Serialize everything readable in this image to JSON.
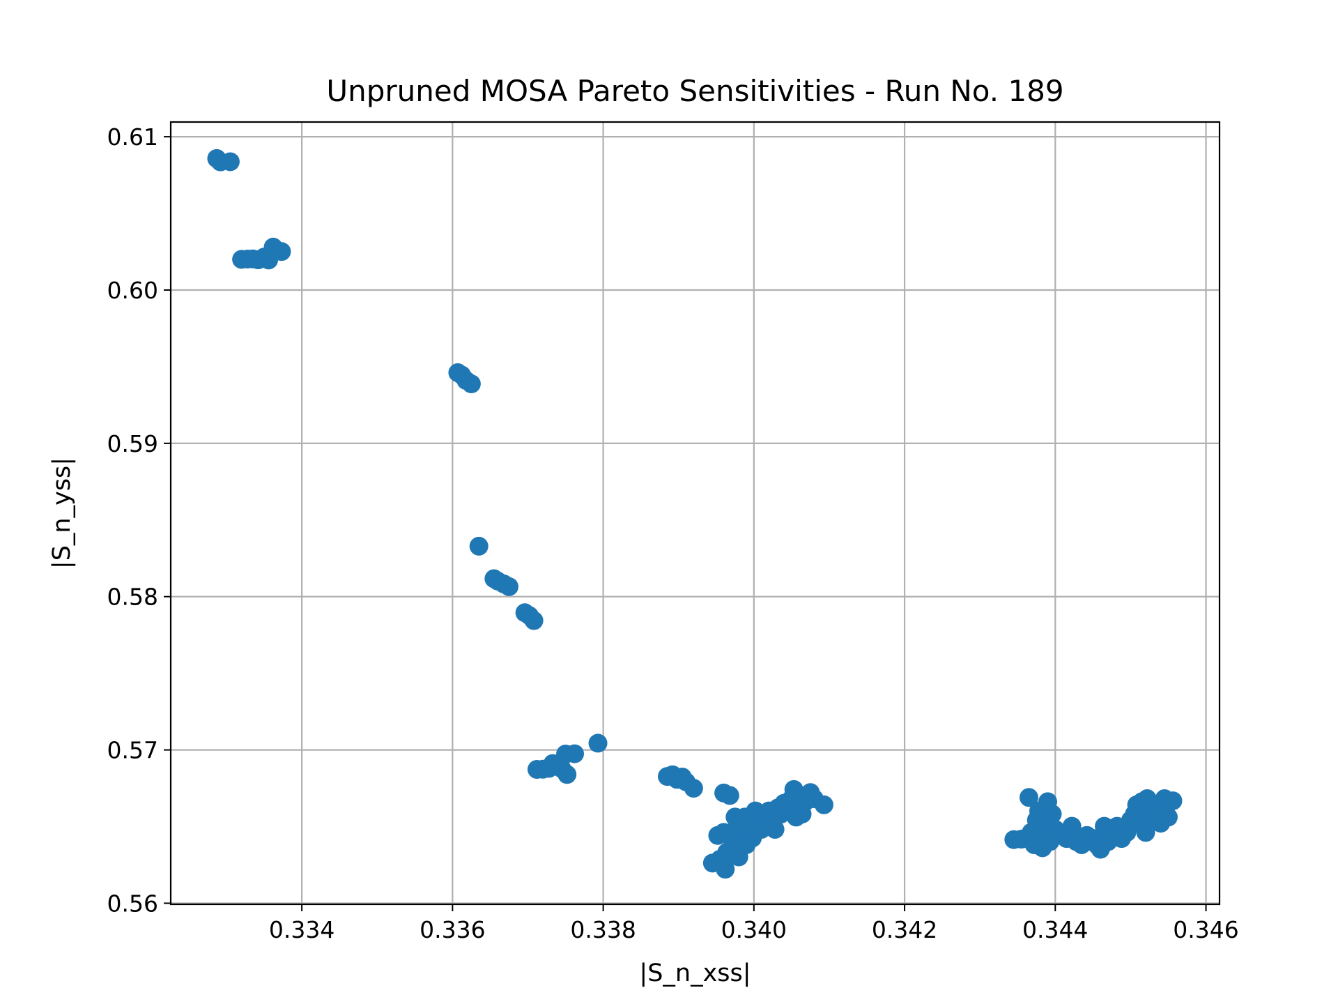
{
  "chart_data": {
    "type": "scatter",
    "title": "Unpruned MOSA Pareto Sensitivities - Run No. 189",
    "xlabel": "|S_n_xss|",
    "ylabel": "|S_n_yss|",
    "xlim": [
      0.33226,
      0.34618
    ],
    "ylim": [
      0.55993,
      0.61096
    ],
    "xticks": [
      0.334,
      0.336,
      0.338,
      0.34,
      0.342,
      0.344,
      0.346
    ],
    "xtick_labels": [
      "0.334",
      "0.336",
      "0.338",
      "0.340",
      "0.342",
      "0.344",
      "0.346"
    ],
    "yticks": [
      0.56,
      0.57,
      0.58,
      0.59,
      0.6,
      0.61
    ],
    "ytick_labels": [
      "0.56",
      "0.57",
      "0.58",
      "0.59",
      "0.60",
      "0.61"
    ],
    "grid": true,
    "marker_color": "#1f77b4",
    "points": [
      [
        0.33287,
        0.60858
      ],
      [
        0.33292,
        0.60836
      ],
      [
        0.33305,
        0.60837
      ],
      [
        0.3332,
        0.602
      ],
      [
        0.33328,
        0.60202
      ],
      [
        0.33335,
        0.60203
      ],
      [
        0.33342,
        0.60197
      ],
      [
        0.3335,
        0.60215
      ],
      [
        0.33356,
        0.60196
      ],
      [
        0.33362,
        0.6028
      ],
      [
        0.33373,
        0.60251
      ],
      [
        0.33607,
        0.59461
      ],
      [
        0.33612,
        0.59446
      ],
      [
        0.33618,
        0.5941
      ],
      [
        0.33625,
        0.59388
      ],
      [
        0.33635,
        0.58329
      ],
      [
        0.33655,
        0.58117
      ],
      [
        0.3366,
        0.58102
      ],
      [
        0.33668,
        0.58083
      ],
      [
        0.33675,
        0.58065
      ],
      [
        0.33696,
        0.57895
      ],
      [
        0.33702,
        0.57876
      ],
      [
        0.33708,
        0.57844
      ],
      [
        0.33712,
        0.56873
      ],
      [
        0.3372,
        0.56874
      ],
      [
        0.33728,
        0.5688
      ],
      [
        0.33733,
        0.56911
      ],
      [
        0.33745,
        0.56878
      ],
      [
        0.3375,
        0.56973
      ],
      [
        0.33752,
        0.5684
      ],
      [
        0.33762,
        0.56975
      ],
      [
        0.33793,
        0.57044
      ],
      [
        0.33885,
        0.56827
      ],
      [
        0.33892,
        0.56838
      ],
      [
        0.33898,
        0.56808
      ],
      [
        0.33905,
        0.56823
      ],
      [
        0.3391,
        0.56792
      ],
      [
        0.3392,
        0.5675
      ],
      [
        0.33945,
        0.56262
      ],
      [
        0.33955,
        0.56287
      ],
      [
        0.33962,
        0.56222
      ],
      [
        0.33952,
        0.56442
      ],
      [
        0.3396,
        0.56462
      ],
      [
        0.3396,
        0.56719
      ],
      [
        0.33968,
        0.56703
      ],
      [
        0.33964,
        0.56332
      ],
      [
        0.33972,
        0.56402
      ],
      [
        0.33975,
        0.56562
      ],
      [
        0.33978,
        0.56502
      ],
      [
        0.3398,
        0.56302
      ],
      [
        0.33985,
        0.56462
      ],
      [
        0.33988,
        0.56562
      ],
      [
        0.3399,
        0.56382
      ],
      [
        0.33995,
        0.56502
      ],
      [
        0.33998,
        0.56425
      ],
      [
        0.34002,
        0.56602
      ],
      [
        0.34005,
        0.56522
      ],
      [
        0.3401,
        0.56482
      ],
      [
        0.34015,
        0.56562
      ],
      [
        0.3402,
        0.56602
      ],
      [
        0.34025,
        0.56522
      ],
      [
        0.34028,
        0.56482
      ],
      [
        0.34032,
        0.56622
      ],
      [
        0.34036,
        0.56582
      ],
      [
        0.3404,
        0.56652
      ],
      [
        0.34045,
        0.56602
      ],
      [
        0.3405,
        0.56682
      ],
      [
        0.34053,
        0.56742
      ],
      [
        0.34056,
        0.56562
      ],
      [
        0.3406,
        0.56622
      ],
      [
        0.34064,
        0.56582
      ],
      [
        0.34068,
        0.56662
      ],
      [
        0.34075,
        0.56722
      ],
      [
        0.3408,
        0.56682
      ],
      [
        0.34093,
        0.56642
      ],
      [
        0.34345,
        0.56415
      ],
      [
        0.34355,
        0.56418
      ],
      [
        0.34365,
        0.5669
      ],
      [
        0.34368,
        0.56462
      ],
      [
        0.34372,
        0.56382
      ],
      [
        0.34375,
        0.56542
      ],
      [
        0.34378,
        0.56602
      ],
      [
        0.3438,
        0.56442
      ],
      [
        0.34383,
        0.56362
      ],
      [
        0.34387,
        0.56522
      ],
      [
        0.3439,
        0.56662
      ],
      [
        0.34393,
        0.56402
      ],
      [
        0.34396,
        0.56582
      ],
      [
        0.344,
        0.56482
      ],
      [
        0.34408,
        0.56442
      ],
      [
        0.34415,
        0.56422
      ],
      [
        0.34422,
        0.56502
      ],
      [
        0.34428,
        0.56402
      ],
      [
        0.34435,
        0.56382
      ],
      [
        0.34442,
        0.56442
      ],
      [
        0.3445,
        0.56422
      ],
      [
        0.34455,
        0.56382
      ],
      [
        0.3446,
        0.56352
      ],
      [
        0.34465,
        0.56502
      ],
      [
        0.3447,
        0.56402
      ],
      [
        0.34475,
        0.56462
      ],
      [
        0.34482,
        0.56502
      ],
      [
        0.34488,
        0.56422
      ],
      [
        0.34495,
        0.56462
      ],
      [
        0.345,
        0.56542
      ],
      [
        0.34505,
        0.56582
      ],
      [
        0.34508,
        0.56642
      ],
      [
        0.34512,
        0.56522
      ],
      [
        0.34515,
        0.56662
      ],
      [
        0.34518,
        0.56602
      ],
      [
        0.3452,
        0.56462
      ],
      [
        0.34522,
        0.56682
      ],
      [
        0.34525,
        0.56622
      ],
      [
        0.3453,
        0.56562
      ],
      [
        0.34535,
        0.56642
      ],
      [
        0.3454,
        0.56522
      ],
      [
        0.34545,
        0.56682
      ],
      [
        0.3455,
        0.56562
      ],
      [
        0.34556,
        0.56668
      ]
    ]
  }
}
